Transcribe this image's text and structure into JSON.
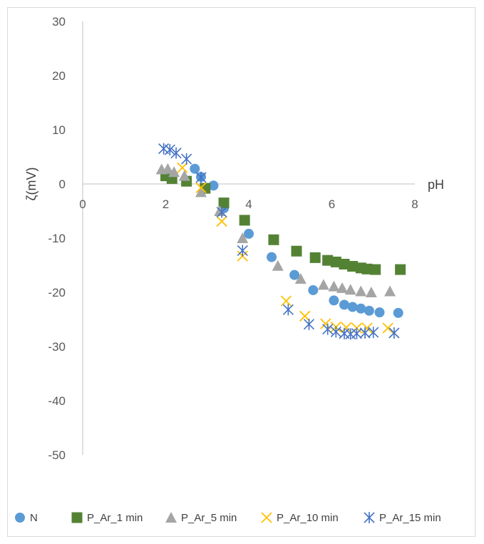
{
  "chart_data": {
    "type": "scatter",
    "title": "",
    "xlabel": "pH",
    "ylabel": "ζ(mV)",
    "xlim": [
      0,
      8
    ],
    "ylim": [
      -50,
      30
    ],
    "x_ticks": [
      0,
      2,
      4,
      6,
      8
    ],
    "y_ticks": [
      30,
      20,
      10,
      0,
      -10,
      -20,
      -30,
      -40,
      -50
    ],
    "grid": false,
    "legend_position": "bottom",
    "series": [
      {
        "name": "N",
        "marker": "circle",
        "color": "#5b9bd5",
        "points": [
          [
            2.7,
            2.8
          ],
          [
            2.85,
            1.3
          ],
          [
            3.15,
            -0.3
          ],
          [
            3.4,
            -4.5
          ],
          [
            4.0,
            -9.2
          ],
          [
            4.55,
            -13.5
          ],
          [
            5.1,
            -16.8
          ],
          [
            5.55,
            -19.6
          ],
          [
            6.05,
            -21.5
          ],
          [
            6.3,
            -22.3
          ],
          [
            6.5,
            -22.7
          ],
          [
            6.7,
            -23.0
          ],
          [
            6.9,
            -23.4
          ],
          [
            7.15,
            -23.7
          ],
          [
            7.6,
            -23.8
          ]
        ]
      },
      {
        "name": "P_Ar_1 min",
        "marker": "square",
        "color": "#548235",
        "points": [
          [
            2.0,
            1.5
          ],
          [
            2.15,
            1.0
          ],
          [
            2.5,
            0.5
          ],
          [
            2.95,
            -0.8
          ],
          [
            3.4,
            -3.5
          ],
          [
            3.9,
            -6.7
          ],
          [
            4.6,
            -10.3
          ],
          [
            5.15,
            -12.4
          ],
          [
            5.6,
            -13.6
          ],
          [
            5.9,
            -14.1
          ],
          [
            6.1,
            -14.4
          ],
          [
            6.3,
            -14.8
          ],
          [
            6.5,
            -15.2
          ],
          [
            6.7,
            -15.5
          ],
          [
            6.85,
            -15.7
          ],
          [
            7.05,
            -15.8
          ],
          [
            7.65,
            -15.8
          ]
        ]
      },
      {
        "name": "P_Ar_5 min",
        "marker": "triangle",
        "color": "#a5a5a5",
        "points": [
          [
            1.9,
            2.7
          ],
          [
            2.05,
            2.8
          ],
          [
            2.2,
            2.2
          ],
          [
            2.45,
            1.5
          ],
          [
            2.85,
            -1.5
          ],
          [
            3.3,
            -5.0
          ],
          [
            3.85,
            -10.0
          ],
          [
            4.7,
            -15.1
          ],
          [
            5.25,
            -17.5
          ],
          [
            5.8,
            -18.6
          ],
          [
            6.05,
            -18.9
          ],
          [
            6.25,
            -19.2
          ],
          [
            6.45,
            -19.5
          ],
          [
            6.7,
            -19.8
          ],
          [
            6.95,
            -20.0
          ],
          [
            7.4,
            -19.8
          ]
        ]
      },
      {
        "name": "P_Ar_10 min",
        "marker": "x",
        "color": "#ffc000",
        "points": [
          [
            2.4,
            3.0
          ],
          [
            2.85,
            -0.7
          ],
          [
            3.35,
            -6.9
          ],
          [
            3.85,
            -13.3
          ],
          [
            4.9,
            -21.6
          ],
          [
            5.35,
            -24.4
          ],
          [
            5.85,
            -25.8
          ],
          [
            6.1,
            -26.4
          ],
          [
            6.35,
            -26.5
          ],
          [
            6.6,
            -26.6
          ],
          [
            6.85,
            -26.6
          ],
          [
            7.35,
            -26.6
          ]
        ]
      },
      {
        "name": "P_Ar_15 min",
        "marker": "star",
        "color": "#4472c4",
        "points": [
          [
            1.95,
            6.5
          ],
          [
            2.1,
            6.3
          ],
          [
            2.25,
            5.7
          ],
          [
            2.5,
            4.6
          ],
          [
            2.85,
            1.2
          ],
          [
            3.35,
            -5.2
          ],
          [
            3.85,
            -12.3
          ],
          [
            4.95,
            -23.2
          ],
          [
            5.45,
            -25.9
          ],
          [
            5.9,
            -26.8
          ],
          [
            6.1,
            -27.3
          ],
          [
            6.3,
            -27.6
          ],
          [
            6.45,
            -27.7
          ],
          [
            6.6,
            -27.6
          ],
          [
            6.8,
            -27.5
          ],
          [
            7.0,
            -27.4
          ],
          [
            7.5,
            -27.5
          ]
        ]
      }
    ]
  }
}
